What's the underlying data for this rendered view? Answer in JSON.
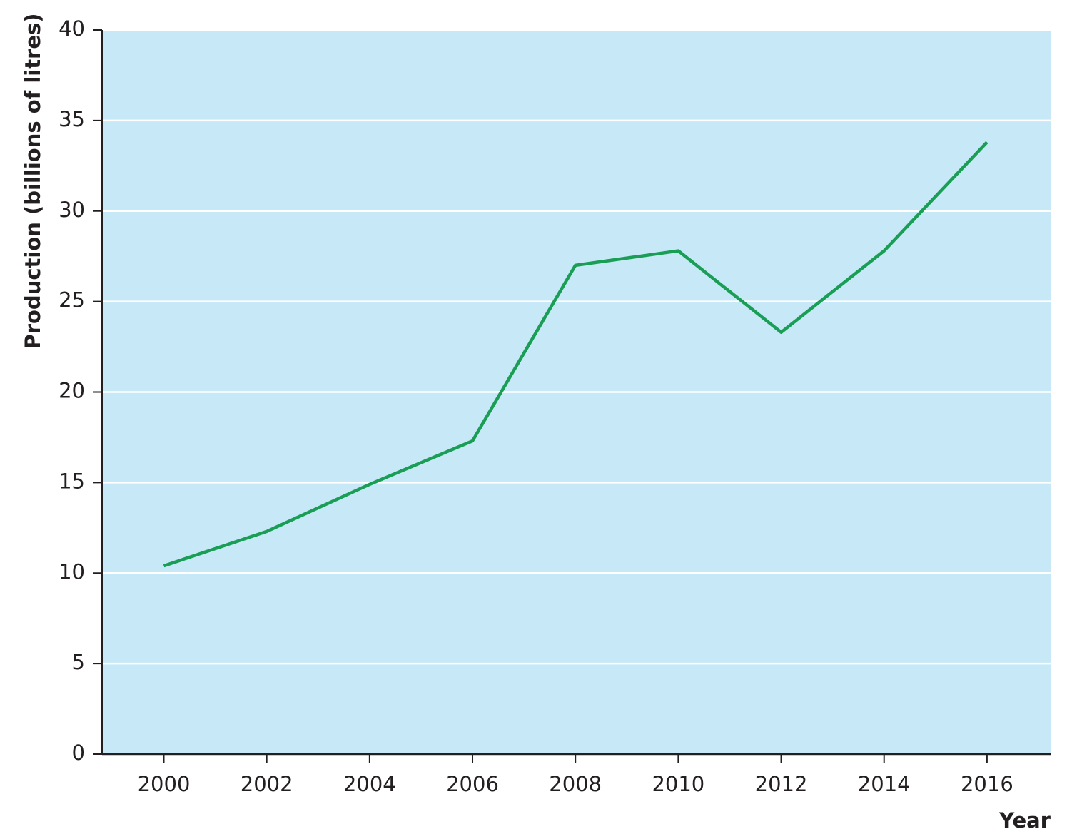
{
  "chart_data": {
    "type": "line",
    "x_label": "Year",
    "y_label": "Production (billions of litres)",
    "x": [
      2000,
      2002,
      2004,
      2006,
      2008,
      2010,
      2012,
      2014,
      2016
    ],
    "series": [
      {
        "color": "#1a9e55",
        "values": [
          10.4,
          12.3,
          14.9,
          17.3,
          27.0,
          27.8,
          23.3,
          27.8,
          33.8
        ]
      }
    ],
    "xlim": [
      1998.8,
      2017.25
    ],
    "xticks": [
      2000,
      2002,
      2004,
      2006,
      2008,
      2010,
      2012,
      2014,
      2016
    ],
    "ylim": [
      0,
      40
    ],
    "yticks": [
      0,
      5,
      10,
      15,
      20,
      25,
      30,
      35,
      40
    ],
    "grid": true,
    "background": "#c7e9f7"
  }
}
